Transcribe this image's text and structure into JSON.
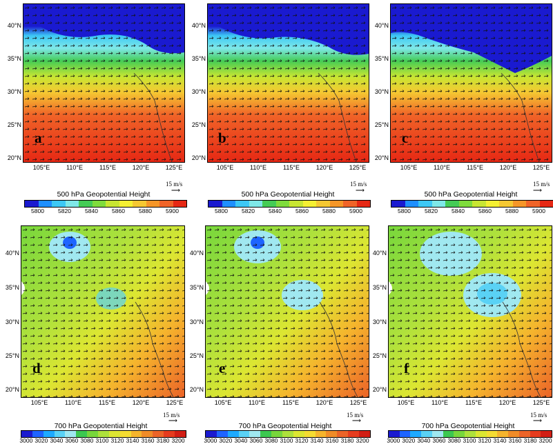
{
  "lat_labels": [
    "40°N",
    "35°N",
    "30°N",
    "25°N",
    "20°N"
  ],
  "lon_labels": [
    "105°E",
    "110°E",
    "115°E",
    "120°E",
    "125°E"
  ],
  "reference_vector": "15 m/s",
  "top_row": {
    "colorbar_title": "500 hPa Geopotential Height",
    "colorbar_ticks": [
      "5800",
      "5820",
      "5840",
      "5860",
      "5880",
      "5900"
    ],
    "colors": [
      "#1a1ad0",
      "#1e8fff",
      "#3dc8f5",
      "#7fe8e8",
      "#44cc55",
      "#7fdc3c",
      "#c8e632",
      "#f5f032",
      "#f5c832",
      "#f59628",
      "#f06428",
      "#e62814"
    ],
    "panels": [
      {
        "label": "a"
      },
      {
        "label": "b"
      },
      {
        "label": "c"
      }
    ]
  },
  "bottom_row": {
    "colorbar_title": "700 hPa Geopotential Height",
    "colorbar_ticks": [
      "3000",
      "3020",
      "3040",
      "3060",
      "3080",
      "3100",
      "3120",
      "3140",
      "3160",
      "3180",
      "3200"
    ],
    "colors": [
      "#1a1ad0",
      "#1e64ff",
      "#1eaaff",
      "#5ad2f5",
      "#a0e8f0",
      "#3cc850",
      "#78d73c",
      "#aee13c",
      "#dce632",
      "#f5dc32",
      "#f5b42d",
      "#f08c28",
      "#eb6428",
      "#e63c1e",
      "#d21e14"
    ],
    "panels": [
      {
        "label": "d"
      },
      {
        "label": "e"
      },
      {
        "label": "f"
      }
    ]
  }
}
